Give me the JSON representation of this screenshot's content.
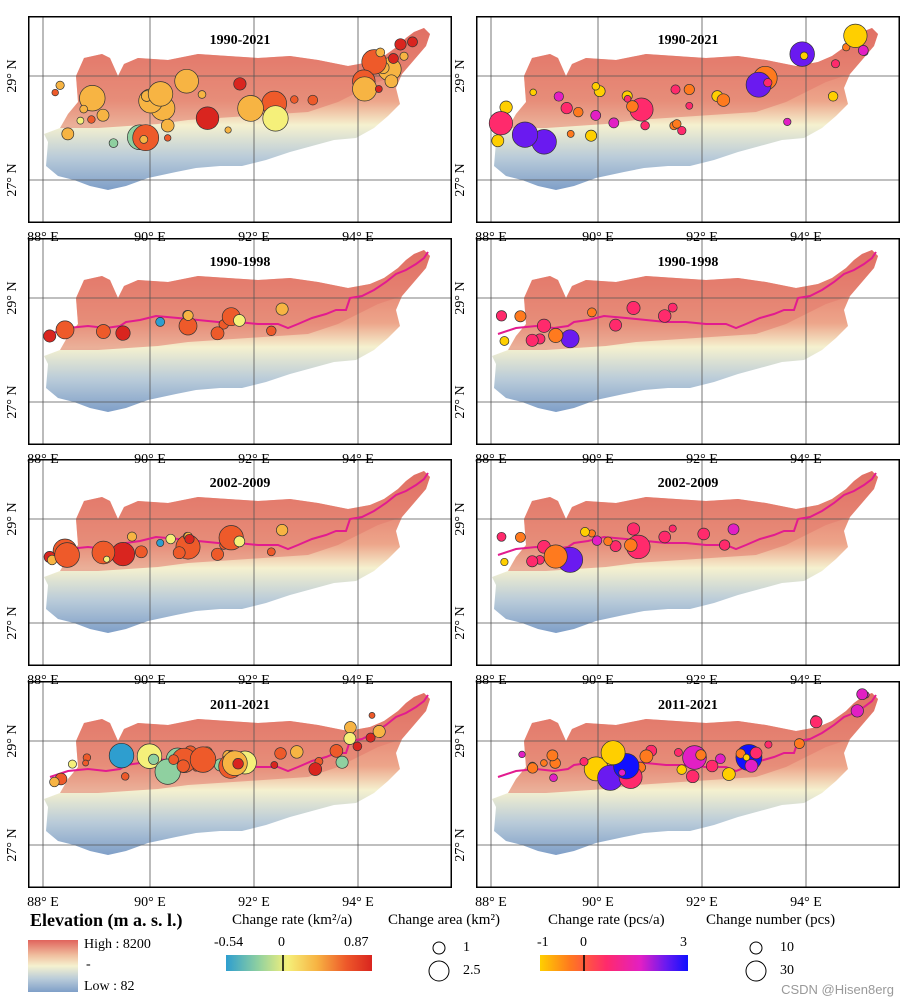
{
  "panels": [
    {
      "id": "rate-1990-2021",
      "title": "1990-2021",
      "variant": "area",
      "mode": "full"
    },
    {
      "id": "number-1990-2021",
      "title": "1990-2021",
      "variant": "number",
      "mode": "full"
    },
    {
      "id": "rate-1990-1998",
      "title": "1990-1998",
      "variant": "area",
      "mode": "p1"
    },
    {
      "id": "number-1990-1998",
      "title": "1990-1998",
      "variant": "number",
      "mode": "p1"
    },
    {
      "id": "rate-2002-2009",
      "title": "2002-2009",
      "variant": "area",
      "mode": "p2"
    },
    {
      "id": "number-2002-2009",
      "title": "2002-2009",
      "variant": "number",
      "mode": "p2"
    },
    {
      "id": "rate-2011-2021",
      "title": "2011-2021",
      "variant": "area",
      "mode": "p3"
    },
    {
      "id": "number-2011-2021",
      "title": "2011-2021",
      "variant": "number",
      "mode": "p3"
    }
  ],
  "axis_labels": {
    "x": [
      "88° E",
      "90° E",
      "92° E",
      "94° E"
    ],
    "y": [
      "29° N",
      "27° N"
    ]
  },
  "legend": {
    "elevation_title": "Elevation (m a. s. l.)",
    "elevation_high": "High : 8200",
    "elevation_low": "Low : 82",
    "elevation_mid_mark": "-",
    "rate_area_title": "Change rate (km²/a)",
    "rate_area_min": "-0.54",
    "rate_area_zero": "0",
    "rate_area_max": "0.87",
    "area_title": "Change area (km²)",
    "area_small": "1",
    "area_large": "2.5",
    "rate_number_title": "Change rate (pcs/a)",
    "rate_number_min": "-1",
    "rate_number_zero": "0",
    "rate_number_max": "3",
    "number_title": "Change number (pcs)",
    "number_small": "10",
    "number_large": "30"
  },
  "colors": {
    "rate_area_ramp": [
      "#2e9ecf",
      "#8fd0a0",
      "#f5f07a",
      "#f7b443",
      "#ee5a2a",
      "#d9251f"
    ],
    "rate_number_ramp": [
      "#ffcf00",
      "#ff7a1e",
      "#ff2a6c",
      "#e21fc4",
      "#6a1af0",
      "#1010ff"
    ],
    "elevation_ramp": [
      "#e0635c",
      "#f0c0a0",
      "#f5f1cf",
      "#b9cbd9",
      "#7f9fc8"
    ],
    "route_line": "#e21b8f"
  },
  "watermark": "CSDN @Hisen8erg"
}
